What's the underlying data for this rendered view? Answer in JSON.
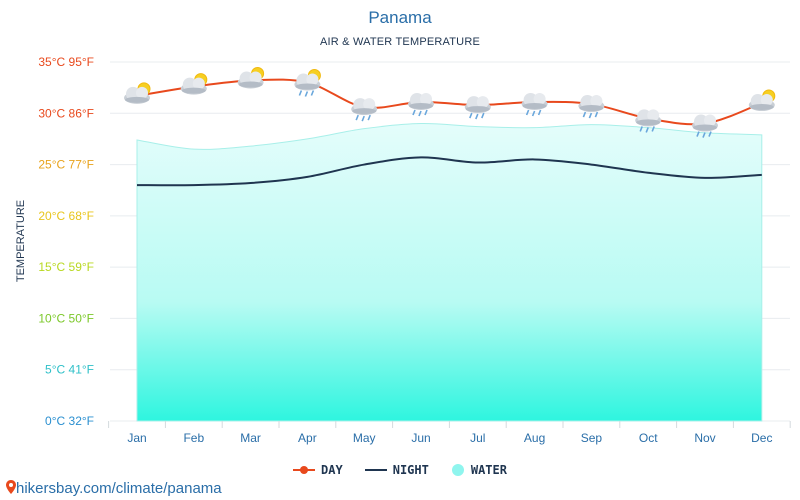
{
  "title": "Panama",
  "subtitle": "AIR & WATER TEMPERATURE",
  "footer_link": "hikersbay.com/climate/panama",
  "chart_data": {
    "type": "line",
    "ylabel": "TEMPERATURE",
    "ylim": [
      0,
      35
    ],
    "yticks": [
      {
        "value": 35,
        "label": "35°C 95°F",
        "color": "#e8491d"
      },
      {
        "value": 30,
        "label": "30°C 86°F",
        "color": "#e8491d"
      },
      {
        "value": 25,
        "label": "25°C 77°F",
        "color": "#e8a31d"
      },
      {
        "value": 20,
        "label": "20°C 68°F",
        "color": "#e8c51d"
      },
      {
        "value": 15,
        "label": "15°C 59°F",
        "color": "#b8d820"
      },
      {
        "value": 10,
        "label": "10°C 50°F",
        "color": "#7cc82a"
      },
      {
        "value": 5,
        "label": "5°C 41°F",
        "color": "#2fc0c8"
      },
      {
        "value": 0,
        "label": "0°C 32°F",
        "color": "#2a8fd0"
      }
    ],
    "categories": [
      "Jan",
      "Feb",
      "Mar",
      "Apr",
      "May",
      "Jun",
      "Jul",
      "Aug",
      "Sep",
      "Oct",
      "Nov",
      "Dec"
    ],
    "grid": true,
    "legend_position": "bottom-center",
    "series": [
      {
        "name": "DAY",
        "color": "#e8491d",
        "values": [
          31.7,
          32.6,
          33.2,
          33.0,
          30.6,
          31.1,
          30.8,
          31.1,
          30.9,
          29.5,
          29.0,
          31.0
        ]
      },
      {
        "name": "NIGHT",
        "color": "#1f3550",
        "values": [
          23.0,
          23.0,
          23.2,
          23.8,
          25.0,
          25.7,
          25.2,
          25.5,
          25.0,
          24.2,
          23.7,
          24.0
        ]
      },
      {
        "name": "WATER",
        "color": "#8ff5ee",
        "values": [
          27.4,
          26.5,
          26.8,
          27.5,
          28.5,
          29.0,
          28.7,
          28.6,
          28.9,
          28.6,
          28.1,
          27.9
        ]
      }
    ],
    "weather_icons": [
      "partly-cloudy",
      "partly-cloudy",
      "partly-cloudy",
      "rain-sun",
      "rain",
      "rain",
      "rain",
      "rain",
      "rain",
      "rain",
      "rain",
      "partly-cloudy"
    ]
  }
}
